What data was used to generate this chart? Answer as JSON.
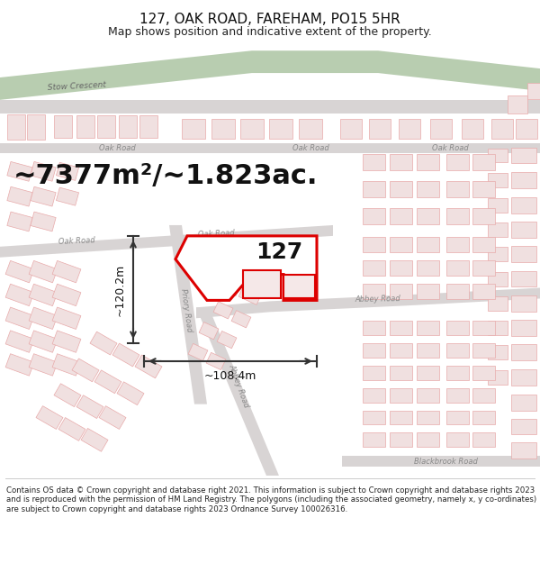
{
  "title": "127, OAK ROAD, FAREHAM, PO15 5HR",
  "subtitle": "Map shows position and indicative extent of the property.",
  "footer": "Contains OS data © Crown copyright and database right 2021. This information is subject to Crown copyright and database rights 2023 and is reproduced with the permission of HM Land Registry. The polygons (including the associated geometry, namely x, y co-ordinates) are subject to Crown copyright and database rights 2023 Ordnance Survey 100026316.",
  "area_label": "~7377m²/~1.823ac.",
  "label_127": "127",
  "dim_horiz": "~108.4m",
  "dim_vert": "~120.2m",
  "bg_color": "#ffffff",
  "map_bg": "#f7f3f3",
  "building_fill": "#f0e0e0",
  "building_stroke": "#e8aaaa",
  "highlight_stroke": "#dd0000",
  "highlight_fill": "#ffffff",
  "green_color": "#b8cdb0",
  "gray_road": "#d8d4d4",
  "dim_line_color": "#333333",
  "road_label_color": "#888888",
  "stow_label_color": "#777777",
  "title_fontsize": 11,
  "subtitle_fontsize": 9,
  "footer_fontsize": 6.2,
  "area_fontsize": 22,
  "label_fontsize": 18,
  "dim_fontsize": 9,
  "road_fontsize": 7
}
